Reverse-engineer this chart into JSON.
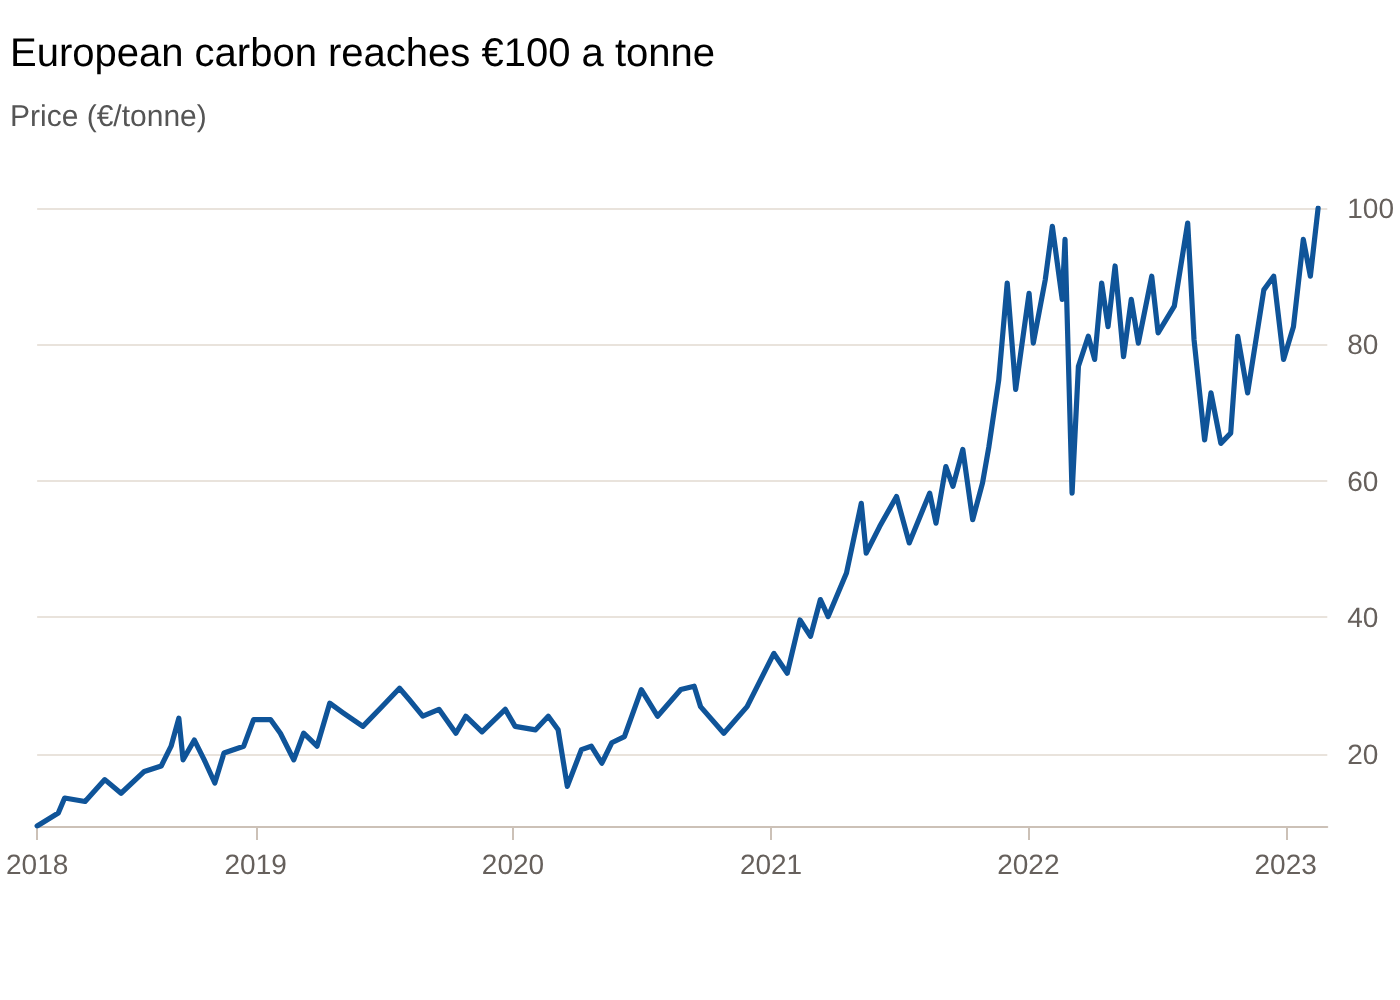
{
  "chart_data": {
    "type": "line",
    "title": "European carbon reaches €100 a tonne",
    "ylabel": "Price (€/tonne)",
    "x": [
      "2018-02-25",
      "2018-03-27",
      "2018-04-05",
      "2018-05-04",
      "2018-06-01",
      "2018-06-24",
      "2018-07-27",
      "2018-08-20",
      "2018-09-03",
      "2018-09-14",
      "2018-09-20",
      "2018-10-06",
      "2018-10-20",
      "2018-11-04",
      "2018-11-17",
      "2018-12-15",
      "2018-12-29",
      "2019-01-22",
      "2019-02-05",
      "2019-02-24",
      "2019-03-10",
      "2019-03-29",
      "2019-04-16",
      "2019-05-05",
      "2019-06-02",
      "2019-06-30",
      "2019-07-24",
      "2019-08-07",
      "2019-08-26",
      "2019-09-18",
      "2019-10-12",
      "2019-10-26",
      "2019-11-18",
      "2019-12-21",
      "2020-01-04",
      "2020-02-02",
      "2020-02-20",
      "2020-03-05",
      "2020-03-18",
      "2020-04-07",
      "2020-04-21",
      "2020-05-06",
      "2020-05-20",
      "2020-06-07",
      "2020-07-01",
      "2020-07-24",
      "2020-08-26",
      "2020-09-14",
      "2020-09-23",
      "2020-10-26",
      "2020-11-28",
      "2021-01-05",
      "2021-01-24",
      "2021-02-11",
      "2021-02-26",
      "2021-03-12",
      "2021-03-23",
      "2021-04-18",
      "2021-05-09",
      "2021-05-16",
      "2021-06-04",
      "2021-06-28",
      "2021-07-16",
      "2021-08-14",
      "2021-08-23",
      "2021-09-06",
      "2021-09-16",
      "2021-09-30",
      "2021-10-14",
      "2021-10-28",
      "2021-11-06",
      "2021-11-20",
      "2021-12-02",
      "2021-12-14",
      "2022-01-02",
      "2022-01-08",
      "2022-01-25",
      "2022-02-04",
      "2022-02-18",
      "2022-02-22",
      "2022-03-04",
      "2022-03-13",
      "2022-03-27",
      "2022-04-05",
      "2022-04-15",
      "2022-04-24",
      "2022-05-04",
      "2022-05-16",
      "2022-05-27",
      "2022-06-06",
      "2022-06-25",
      "2022-07-04",
      "2022-07-27",
      "2022-08-15",
      "2022-08-24",
      "2022-09-08",
      "2022-09-17",
      "2022-10-01",
      "2022-10-15",
      "2022-10-25",
      "2022-11-08",
      "2022-12-01",
      "2022-12-15",
      "2022-12-29",
      "2023-01-12",
      "2023-01-26",
      "2023-02-05",
      "2023-02-16"
    ],
    "series": [
      {
        "color": "#0f5499",
        "values": [
          9.4,
          11.3,
          13.5,
          13.0,
          16.2,
          14.2,
          17.4,
          18.2,
          21.1,
          25.2,
          19.1,
          22.0,
          19.1,
          15.7,
          20.1,
          21.1,
          25.0,
          25.0,
          23.0,
          19.1,
          23.0,
          21.1,
          27.4,
          26.0,
          24.0,
          27.0,
          29.6,
          27.9,
          25.5,
          26.5,
          23.0,
          25.5,
          23.2,
          26.5,
          24.0,
          23.5,
          25.5,
          23.5,
          15.2,
          20.6,
          21.1,
          18.6,
          21.6,
          22.5,
          29.4,
          25.5,
          29.4,
          29.9,
          26.9,
          23.0,
          26.9,
          34.7,
          31.8,
          39.6,
          37.2,
          42.6,
          40.1,
          46.5,
          56.7,
          49.4,
          53.3,
          57.7,
          50.9,
          58.2,
          53.8,
          62.1,
          59.2,
          64.6,
          54.3,
          59.7,
          65.0,
          74.8,
          89.0,
          73.4,
          87.5,
          80.2,
          89.5,
          97.3,
          86.6,
          95.4,
          58.2,
          76.8,
          81.2,
          77.8,
          89.0,
          82.6,
          91.5,
          78.2,
          86.6,
          80.2,
          90.0,
          81.7,
          85.6,
          97.8,
          80.7,
          66.0,
          72.9,
          65.5,
          67.0,
          81.2,
          72.9,
          88.0,
          90.0,
          77.8,
          82.6,
          95.4,
          90.0,
          100.0
        ]
      }
    ],
    "xlim": [
      "2018-02-25",
      "2023-03-01"
    ],
    "xticks": [
      {
        "value": "2018-02-25",
        "label": "2018"
      },
      "2019",
      "2020",
      "2021",
      "2022",
      "2023"
    ],
    "ylim": [
      9.4,
      100
    ],
    "yticks": [
      20,
      40,
      60,
      80,
      100
    ],
    "grid": "y",
    "marker": "none",
    "line_style": "solid"
  }
}
